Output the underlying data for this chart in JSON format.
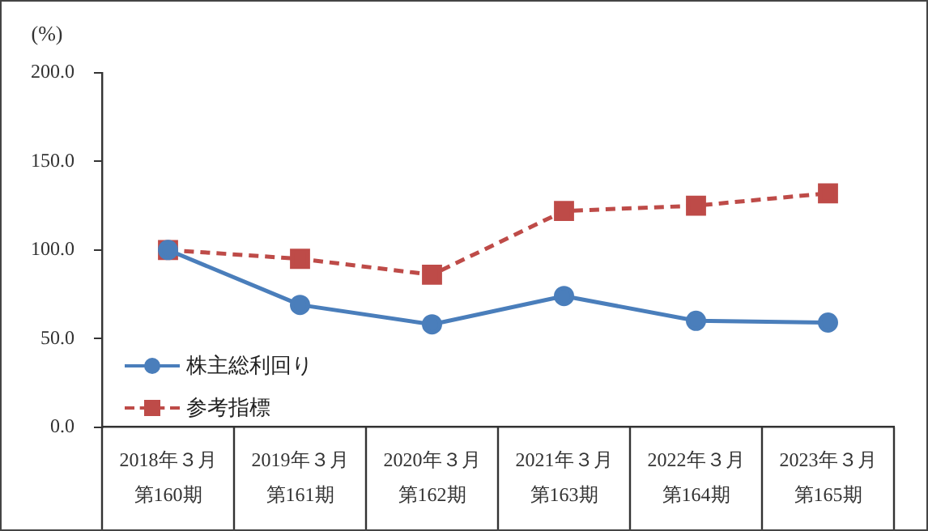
{
  "chart_data": {
    "type": "line",
    "ylabel": "(%)",
    "categories": [
      "2018年３月第160期",
      "2019年３月第161期",
      "2020年３月第162期",
      "2021年３月第163期",
      "2022年３月第164期",
      "2023年３月第165期"
    ],
    "series": [
      {
        "name": "株主総利回り",
        "color": "#4a7ebb",
        "marker": "circle",
        "line_style": "solid",
        "values": [
          100,
          69,
          58,
          74,
          60,
          59
        ]
      },
      {
        "name": "参考指標",
        "color": "#be4b48",
        "marker": "square",
        "line_style": "dashed",
        "values": [
          100,
          95,
          86,
          122,
          125,
          132
        ]
      }
    ],
    "ylim": [
      0,
      200
    ],
    "yticks": [
      {
        "value": 0,
        "label": "0.0"
      },
      {
        "value": 50,
        "label": "50.0"
      },
      {
        "value": 100,
        "label": "100.0"
      },
      {
        "value": 150,
        "label": "150.0"
      },
      {
        "value": 200,
        "label": "200.0"
      }
    ],
    "grid": false,
    "legend": "bottom left"
  }
}
